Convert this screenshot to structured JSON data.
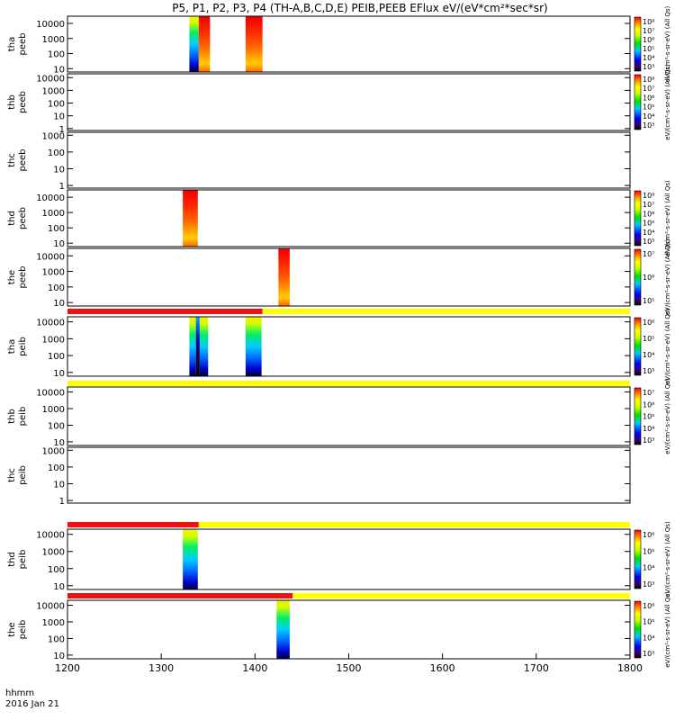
{
  "title": "P5, P1, P2, P3, P4 (TH-A,B,C,D,E) PEIB,PEEB EFlux eV/(eV*cm²*sec*sr)",
  "footer": {
    "line1": "hhmm",
    "line2": "2016 Jan 21"
  },
  "colors": {
    "bar_red": "#ee1111",
    "bar_yellow": "#ffff00"
  },
  "chart_data": {
    "type": "heatmap",
    "x": {
      "min": 1200,
      "max": 1800,
      "ticks": [
        1200,
        1300,
        1400,
        1500,
        1600,
        1700,
        1800
      ]
    },
    "panels": [
      {
        "label_top": "tha",
        "label_bot": "peeb",
        "yticks": [
          "10000",
          "1000",
          "100",
          "10"
        ],
        "ytick_values": [
          10000,
          1000,
          100,
          10
        ],
        "ylim": [
          6,
          30000
        ],
        "blocks": [
          {
            "x0": 1330,
            "x1": 1340,
            "palette": "cool"
          },
          {
            "x0": 1340,
            "x1": 1352,
            "palette": "hot"
          },
          {
            "x0": 1390,
            "x1": 1408,
            "palette": "hot"
          }
        ],
        "cbar": {
          "ticks": [
            "10⁸",
            "10⁷",
            "10⁶",
            "10⁵",
            "10⁴",
            "10³"
          ],
          "label": "eV/(cm²-s-sr-eV) (All Qs)"
        }
      },
      {
        "label_top": "thb",
        "label_bot": "peeb",
        "yticks": [
          "10000",
          "1000",
          "100",
          "10",
          "1"
        ],
        "ytick_values": [
          10000,
          1000,
          100,
          10,
          1
        ],
        "ylim": [
          0.7,
          20000
        ],
        "blocks": [],
        "cbar": {
          "ticks": [
            "10⁸",
            "10⁷",
            "10⁶",
            "10⁵",
            "10⁴",
            "10³"
          ],
          "label": "eV/(cm²-s-sr-eV) (All Qs)"
        }
      },
      {
        "label_top": "thc",
        "label_bot": "peeb",
        "yticks": [
          "1000",
          "100",
          "10",
          "1"
        ],
        "ytick_values": [
          1000,
          100,
          10,
          1
        ],
        "ylim": [
          0.7,
          1500
        ],
        "blocks": [],
        "cbar": null
      },
      {
        "label_top": "thd",
        "label_bot": "peeb",
        "yticks": [
          "10000",
          "1000",
          "100",
          "10"
        ],
        "ytick_values": [
          10000,
          1000,
          100,
          10
        ],
        "ylim": [
          6,
          30000
        ],
        "blocks": [
          {
            "x0": 1323,
            "x1": 1339,
            "palette": "hot"
          }
        ],
        "cbar": {
          "ticks": [
            "10⁸",
            "10⁷",
            "10⁶",
            "10⁵",
            "10⁴",
            "10³"
          ],
          "label": "eV/(cm²-s-sr-eV) (All Qs)"
        }
      },
      {
        "label_top": "the",
        "label_bot": "peeb",
        "yticks": [
          "10000",
          "1000",
          "100",
          "10"
        ],
        "ytick_values": [
          10000,
          1000,
          100,
          10
        ],
        "ylim": [
          6,
          30000
        ],
        "blocks": [
          {
            "x0": 1425,
            "x1": 1437,
            "palette": "hot"
          }
        ],
        "cbar": {
          "ticks": [
            "10⁷",
            "10⁶",
            "10⁵"
          ],
          "label": "eV/(cm²-s-sr-eV) (All Qs)"
        }
      },
      {
        "label_top": "tha",
        "label_bot": "peib",
        "yticks": [
          "10000",
          "1000",
          "100",
          "10"
        ],
        "ytick_values": [
          10000,
          1000,
          100,
          10
        ],
        "ylim": [
          6,
          20000
        ],
        "bar": {
          "red_end": 1408
        },
        "blocks": [
          {
            "x0": 1330,
            "x1": 1337,
            "palette": "cool"
          },
          {
            "x0": 1337,
            "x1": 1341,
            "palette": "dark"
          },
          {
            "x0": 1341,
            "x1": 1350,
            "palette": "cool"
          },
          {
            "x0": 1390,
            "x1": 1407,
            "palette": "cool"
          }
        ],
        "cbar": {
          "ticks": [
            "10⁶",
            "10⁵",
            "10⁴",
            "10³"
          ],
          "label": "eV/(cm²-s-sr-eV) (All Qs)"
        }
      },
      {
        "label_top": "thb",
        "label_bot": "peib",
        "yticks": [
          "10000",
          "1000",
          "100",
          "10"
        ],
        "ytick_values": [
          10000,
          1000,
          100,
          10
        ],
        "ylim": [
          6,
          20000
        ],
        "bar": {
          "red_end": 1200
        },
        "blocks": [],
        "cbar": {
          "ticks": [
            "10⁷",
            "10⁶",
            "10⁵",
            "10⁴",
            "10³"
          ],
          "label": "eV/(cm²-s-sr-eV) (All Qs)"
        }
      },
      {
        "label_top": "thc",
        "label_bot": "peib",
        "yticks": [
          "1000",
          "100",
          "10",
          "1"
        ],
        "ytick_values": [
          1000,
          100,
          10,
          1
        ],
        "ylim": [
          0.7,
          1500
        ],
        "blocks": [],
        "cbar": null
      },
      {
        "label_top": "thd",
        "label_bot": "peib",
        "yticks": [
          "10000",
          "1000",
          "100",
          "10"
        ],
        "ytick_values": [
          10000,
          1000,
          100,
          10
        ],
        "ylim": [
          6,
          20000
        ],
        "bar": {
          "red_end": 1340
        },
        "blocks": [
          {
            "x0": 1323,
            "x1": 1339,
            "palette": "cool"
          }
        ],
        "cbar": {
          "ticks": [
            "10⁶",
            "10⁵",
            "10⁴",
            "10³"
          ],
          "label": "eV/(cm²-s-sr-eV) (All Qs)"
        }
      },
      {
        "label_top": "the",
        "label_bot": "peib",
        "yticks": [
          "10000",
          "1000",
          "100",
          "10"
        ],
        "ytick_values": [
          10000,
          1000,
          100,
          10
        ],
        "ylim": [
          6,
          20000
        ],
        "bar": {
          "red_end": 1440
        },
        "blocks": [
          {
            "x0": 1423,
            "x1": 1437,
            "palette": "cool"
          }
        ],
        "cbar": {
          "ticks": [
            "10⁶",
            "10⁵",
            "10⁴",
            "10³"
          ],
          "label": "eV/(cm²-s-sr-eV) (All Qs)"
        }
      }
    ]
  }
}
